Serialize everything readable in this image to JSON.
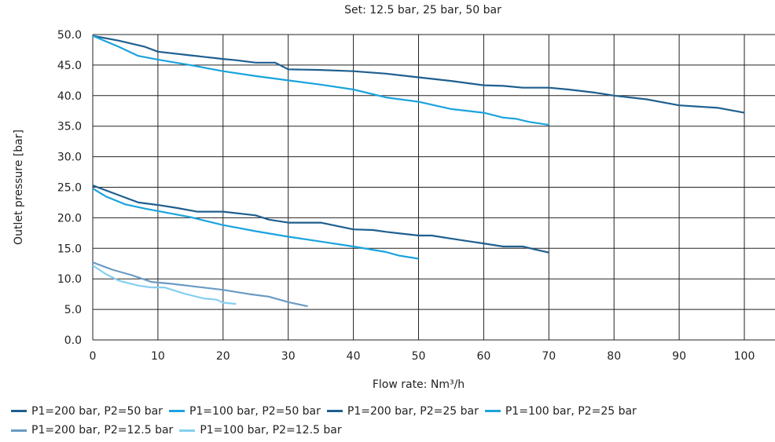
{
  "chart_data": {
    "type": "line",
    "title": "Set: 12.5 bar, 25 bar, 50 bar",
    "xlabel": "Flow rate: Nm³/h",
    "ylabel": "Outlet pressure [bar]",
    "xlim": [
      0,
      100
    ],
    "ylim": [
      0,
      50
    ],
    "x_ticks": [
      "0",
      "10",
      "20",
      "30",
      "40",
      "50",
      "60",
      "70",
      "80",
      "90",
      "100"
    ],
    "y_ticks": [
      "0.0",
      "5.0",
      "10.0",
      "15.0",
      "20.0",
      "25.0",
      "30.0",
      "35.0",
      "40.0",
      "45.0",
      "50.0"
    ],
    "grid": "vertical and horizontal",
    "legend_position": "bottom-left",
    "series": [
      {
        "name": "P1=200 bar, P2=50 bar",
        "color": "#1f5f8f",
        "points": [
          [
            0,
            49.8
          ],
          [
            4,
            49
          ],
          [
            8,
            48
          ],
          [
            10,
            47.2
          ],
          [
            15,
            46.6
          ],
          [
            20,
            46
          ],
          [
            22,
            45.8
          ],
          [
            25,
            45.4
          ],
          [
            28,
            45.4
          ],
          [
            30,
            44.3
          ],
          [
            35,
            44.2
          ],
          [
            40,
            44
          ],
          [
            45,
            43.6
          ],
          [
            50,
            43
          ],
          [
            55,
            42.4
          ],
          [
            60,
            41.7
          ],
          [
            63,
            41.6
          ],
          [
            66,
            41.3
          ],
          [
            70,
            41.3
          ],
          [
            73,
            41
          ],
          [
            77,
            40.5
          ],
          [
            80,
            40
          ],
          [
            85,
            39.4
          ],
          [
            90,
            38.4
          ],
          [
            96,
            38
          ],
          [
            100,
            37.2
          ]
        ]
      },
      {
        "name": "P1=100 bar, P2=50 bar",
        "color": "#1ba3dd",
        "points": [
          [
            0,
            49.8
          ],
          [
            4,
            48
          ],
          [
            7,
            46.5
          ],
          [
            10,
            45.9
          ],
          [
            15,
            45
          ],
          [
            20,
            44
          ],
          [
            25,
            43.2
          ],
          [
            30,
            42.5
          ],
          [
            35,
            41.8
          ],
          [
            40,
            41
          ],
          [
            45,
            39.7
          ],
          [
            50,
            39
          ],
          [
            55,
            37.8
          ],
          [
            60,
            37.2
          ],
          [
            63,
            36.4
          ],
          [
            65,
            36.2
          ],
          [
            67,
            35.7
          ],
          [
            70,
            35.2
          ]
        ]
      },
      {
        "name": "P1=200 bar, P2=25 bar",
        "color": "#1f5f8f",
        "points": [
          [
            0,
            25.3
          ],
          [
            4,
            23.7
          ],
          [
            7,
            22.5
          ],
          [
            10,
            22.1
          ],
          [
            13,
            21.6
          ],
          [
            16,
            21
          ],
          [
            20,
            21
          ],
          [
            25,
            20.4
          ],
          [
            27,
            19.7
          ],
          [
            30,
            19.2
          ],
          [
            35,
            19.2
          ],
          [
            40,
            18.1
          ],
          [
            43,
            18
          ],
          [
            45,
            17.7
          ],
          [
            50,
            17.1
          ],
          [
            52,
            17.1
          ],
          [
            55,
            16.6
          ],
          [
            58,
            16.1
          ],
          [
            60,
            15.8
          ],
          [
            63,
            15.3
          ],
          [
            66,
            15.3
          ],
          [
            68,
            14.8
          ],
          [
            70,
            14.3
          ]
        ]
      },
      {
        "name": "P1=100 bar, P2=25 bar",
        "color": "#1ba3dd",
        "points": [
          [
            0,
            24.8
          ],
          [
            2,
            23.5
          ],
          [
            5,
            22.2
          ],
          [
            8,
            21.5
          ],
          [
            10,
            21.1
          ],
          [
            15,
            20.1
          ],
          [
            20,
            18.8
          ],
          [
            25,
            17.8
          ],
          [
            30,
            16.9
          ],
          [
            35,
            16.1
          ],
          [
            40,
            15.3
          ],
          [
            45,
            14.4
          ],
          [
            47,
            13.8
          ],
          [
            50,
            13.3
          ]
        ]
      },
      {
        "name": "P1=200 bar, P2=12.5 bar",
        "color": "#6a9ac3",
        "points": [
          [
            0,
            12.7
          ],
          [
            3,
            11.5
          ],
          [
            6,
            10.6
          ],
          [
            9,
            9.5
          ],
          [
            12,
            9.2
          ],
          [
            16,
            8.7
          ],
          [
            20,
            8.2
          ],
          [
            24,
            7.5
          ],
          [
            27,
            7.1
          ],
          [
            30,
            6.2
          ],
          [
            33,
            5.5
          ]
        ]
      },
      {
        "name": "P1=100 bar, P2=12.5 bar",
        "color": "#86cff0",
        "points": [
          [
            0,
            12.2
          ],
          [
            2,
            10.8
          ],
          [
            4,
            9.7
          ],
          [
            7,
            8.9
          ],
          [
            9,
            8.6
          ],
          [
            11,
            8.6
          ],
          [
            14,
            7.6
          ],
          [
            17,
            6.8
          ],
          [
            19,
            6.6
          ],
          [
            20,
            6.1
          ],
          [
            22,
            5.9
          ]
        ]
      }
    ]
  }
}
